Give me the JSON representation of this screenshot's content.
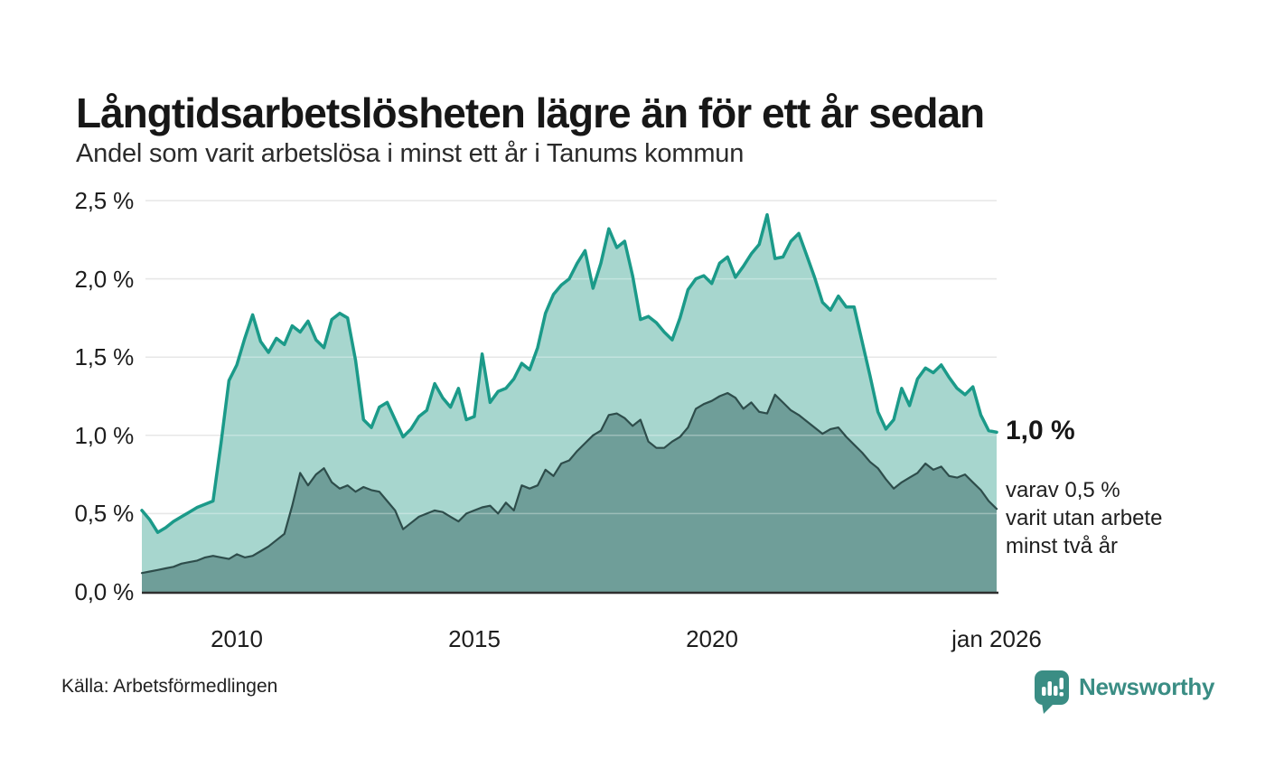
{
  "header": {
    "title": "Långtidsarbetslösheten lägre än för ett år sedan",
    "subtitle": "Andel som varit arbetslösa i minst ett år i Tanums kommun"
  },
  "chart_data": {
    "type": "area",
    "title": "Långtidsarbetslösheten lägre än för ett år sedan",
    "subtitle": "Andel som varit arbetslösa i minst ett år i Tanums kommun",
    "unit": "%",
    "x_range": [
      2008,
      2026
    ],
    "x_sampling": "evenly spaced points, approx. every 2 months, Jan 2008 - Jan 2026",
    "ylim": [
      0,
      2.5
    ],
    "grid": true,
    "legend_position": "none",
    "y_ticks": [
      {
        "label": "0,0 %",
        "value": 0.0
      },
      {
        "label": "0,5 %",
        "value": 0.5
      },
      {
        "label": "1,0 %",
        "value": 1.0
      },
      {
        "label": "1,5 %",
        "value": 1.5
      },
      {
        "label": "2,0 %",
        "value": 2.0
      },
      {
        "label": "2,5 %",
        "value": 2.5
      }
    ],
    "x_ticks": [
      {
        "label": "2010",
        "value": 2010
      },
      {
        "label": "2015",
        "value": 2015
      },
      {
        "label": "2020",
        "value": 2020
      },
      {
        "label": "jan 2026",
        "value": 2026
      }
    ],
    "series": [
      {
        "name": "Arbetslösa minst ett år",
        "line_color": "#1b9a89",
        "fill_color": "#a7d6ce",
        "line_width": 3.5,
        "end_value_label": "1,0 %",
        "values": [
          0.52,
          0.46,
          0.38,
          0.41,
          0.45,
          0.48,
          0.51,
          0.54,
          0.56,
          0.58,
          0.95,
          1.35,
          1.45,
          1.62,
          1.77,
          1.6,
          1.53,
          1.62,
          1.58,
          1.7,
          1.66,
          1.73,
          1.61,
          1.56,
          1.74,
          1.78,
          1.75,
          1.48,
          1.1,
          1.05,
          1.18,
          1.21,
          1.1,
          0.99,
          1.04,
          1.12,
          1.16,
          1.33,
          1.24,
          1.18,
          1.3,
          1.1,
          1.12,
          1.52,
          1.21,
          1.28,
          1.3,
          1.36,
          1.46,
          1.42,
          1.56,
          1.78,
          1.9,
          1.96,
          2.0,
          2.1,
          2.18,
          1.94,
          2.1,
          2.32,
          2.2,
          2.24,
          2.02,
          1.74,
          1.76,
          1.72,
          1.66,
          1.61,
          1.75,
          1.93,
          2.0,
          2.02,
          1.97,
          2.1,
          2.14,
          2.01,
          2.08,
          2.16,
          2.22,
          2.41,
          2.13,
          2.14,
          2.24,
          2.29,
          2.15,
          2.01,
          1.85,
          1.8,
          1.89,
          1.82,
          1.82,
          1.6,
          1.38,
          1.15,
          1.04,
          1.1,
          1.3,
          1.19,
          1.36,
          1.43,
          1.4,
          1.45,
          1.37,
          1.3,
          1.26,
          1.31,
          1.13,
          1.03,
          1.02
        ]
      },
      {
        "name": "varav utan arbete minst två år",
        "line_color": "#2e4d4b",
        "fill_color": "#6f9e99",
        "line_width": 2.2,
        "end_value_label": "0,5 %",
        "values": [
          0.12,
          0.13,
          0.14,
          0.15,
          0.16,
          0.18,
          0.19,
          0.2,
          0.22,
          0.23,
          0.22,
          0.21,
          0.24,
          0.22,
          0.23,
          0.26,
          0.29,
          0.33,
          0.37,
          0.55,
          0.76,
          0.68,
          0.75,
          0.79,
          0.7,
          0.66,
          0.68,
          0.64,
          0.67,
          0.65,
          0.64,
          0.58,
          0.52,
          0.4,
          0.44,
          0.48,
          0.5,
          0.52,
          0.51,
          0.48,
          0.45,
          0.5,
          0.52,
          0.54,
          0.55,
          0.5,
          0.57,
          0.52,
          0.68,
          0.66,
          0.68,
          0.78,
          0.74,
          0.82,
          0.84,
          0.9,
          0.95,
          1.0,
          1.03,
          1.13,
          1.14,
          1.11,
          1.06,
          1.1,
          0.96,
          0.92,
          0.92,
          0.96,
          0.99,
          1.05,
          1.17,
          1.2,
          1.22,
          1.25,
          1.27,
          1.24,
          1.17,
          1.21,
          1.15,
          1.14,
          1.26,
          1.21,
          1.16,
          1.13,
          1.09,
          1.05,
          1.01,
          1.04,
          1.05,
          0.99,
          0.94,
          0.89,
          0.83,
          0.79,
          0.72,
          0.66,
          0.7,
          0.73,
          0.76,
          0.82,
          0.78,
          0.8,
          0.74,
          0.73,
          0.75,
          0.7,
          0.65,
          0.58,
          0.53
        ]
      }
    ],
    "annotations": {
      "primary": "1,0 %",
      "secondary_lines": [
        "varav 0,5 %",
        "varit utan arbete",
        "minst två år"
      ]
    },
    "style": {
      "gridline_color": "#dcdcdc",
      "axis_line_color": "#2f2f2f",
      "background": "#ffffff"
    }
  },
  "footer": {
    "source": "Källa: Arbetsförmedlingen",
    "brand": "Newsworthy",
    "brand_color": "#3a8d84"
  }
}
